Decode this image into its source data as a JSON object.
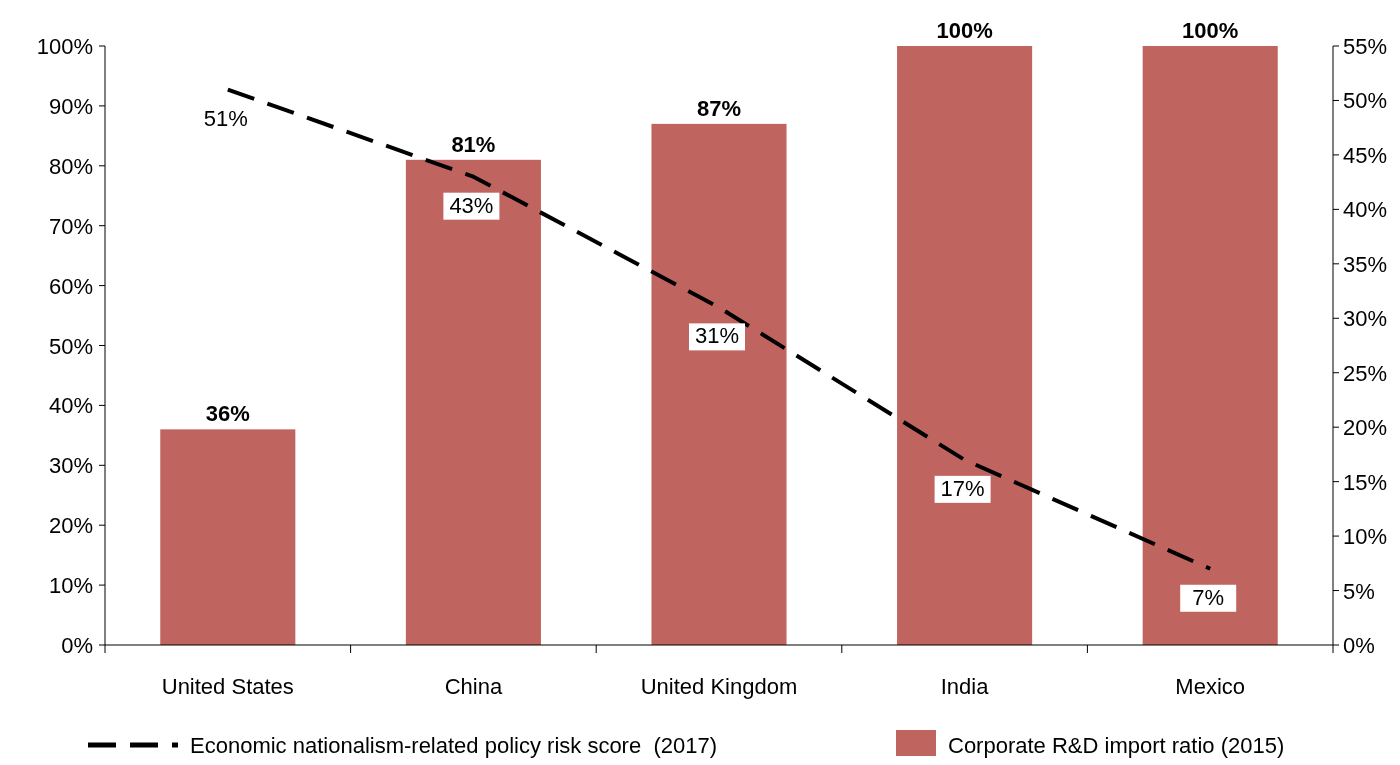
{
  "chart_data": {
    "type": "bar",
    "categories": [
      "United States",
      "China",
      "United Kingdom",
      "India",
      "Mexico"
    ],
    "series": [
      {
        "name": "Corporate R&D import ratio (2015)",
        "color": "#c0645f",
        "values": [
          36,
          81,
          87,
          100,
          100
        ],
        "value_labels": [
          "36%",
          "81%",
          "87%",
          "100%",
          "100%"
        ]
      },
      {
        "name": "Economic nationalism-related policy risk score  (2017)",
        "type": "line",
        "axis": "y2",
        "color": "#000000",
        "line_style": "dashed",
        "marker": "none",
        "values": [
          51,
          43,
          31,
          17,
          7
        ],
        "value_labels": [
          "51%",
          "43%",
          "31%",
          "17%",
          "7%"
        ]
      }
    ],
    "ylim": [
      0,
      100
    ],
    "yticks": [
      {
        "value": 0,
        "label": "0%"
      },
      {
        "value": 10,
        "label": "10%"
      },
      {
        "value": 20,
        "label": "20%"
      },
      {
        "value": 30,
        "label": "30%"
      },
      {
        "value": 40,
        "label": "40%"
      },
      {
        "value": 50,
        "label": "50%"
      },
      {
        "value": 60,
        "label": "60%"
      },
      {
        "value": 70,
        "label": "70%"
      },
      {
        "value": 80,
        "label": "80%"
      },
      {
        "value": 90,
        "label": "90%"
      },
      {
        "value": 100,
        "label": "100%"
      }
    ],
    "y2lim": [
      0,
      55
    ],
    "y2ticks": [
      {
        "value": 0,
        "label": "0%"
      },
      {
        "value": 5,
        "label": "5%"
      },
      {
        "value": 10,
        "label": "10%"
      },
      {
        "value": 15,
        "label": "15%"
      },
      {
        "value": 20,
        "label": "20%"
      },
      {
        "value": 25,
        "label": "25%"
      },
      {
        "value": 30,
        "label": "30%"
      },
      {
        "value": 35,
        "label": "35%"
      },
      {
        "value": 40,
        "label": "40%"
      },
      {
        "value": 45,
        "label": "45%"
      },
      {
        "value": 50,
        "label": "50%"
      },
      {
        "value": 55,
        "label": "55%"
      }
    ],
    "grid": false,
    "legend": "bottom"
  }
}
